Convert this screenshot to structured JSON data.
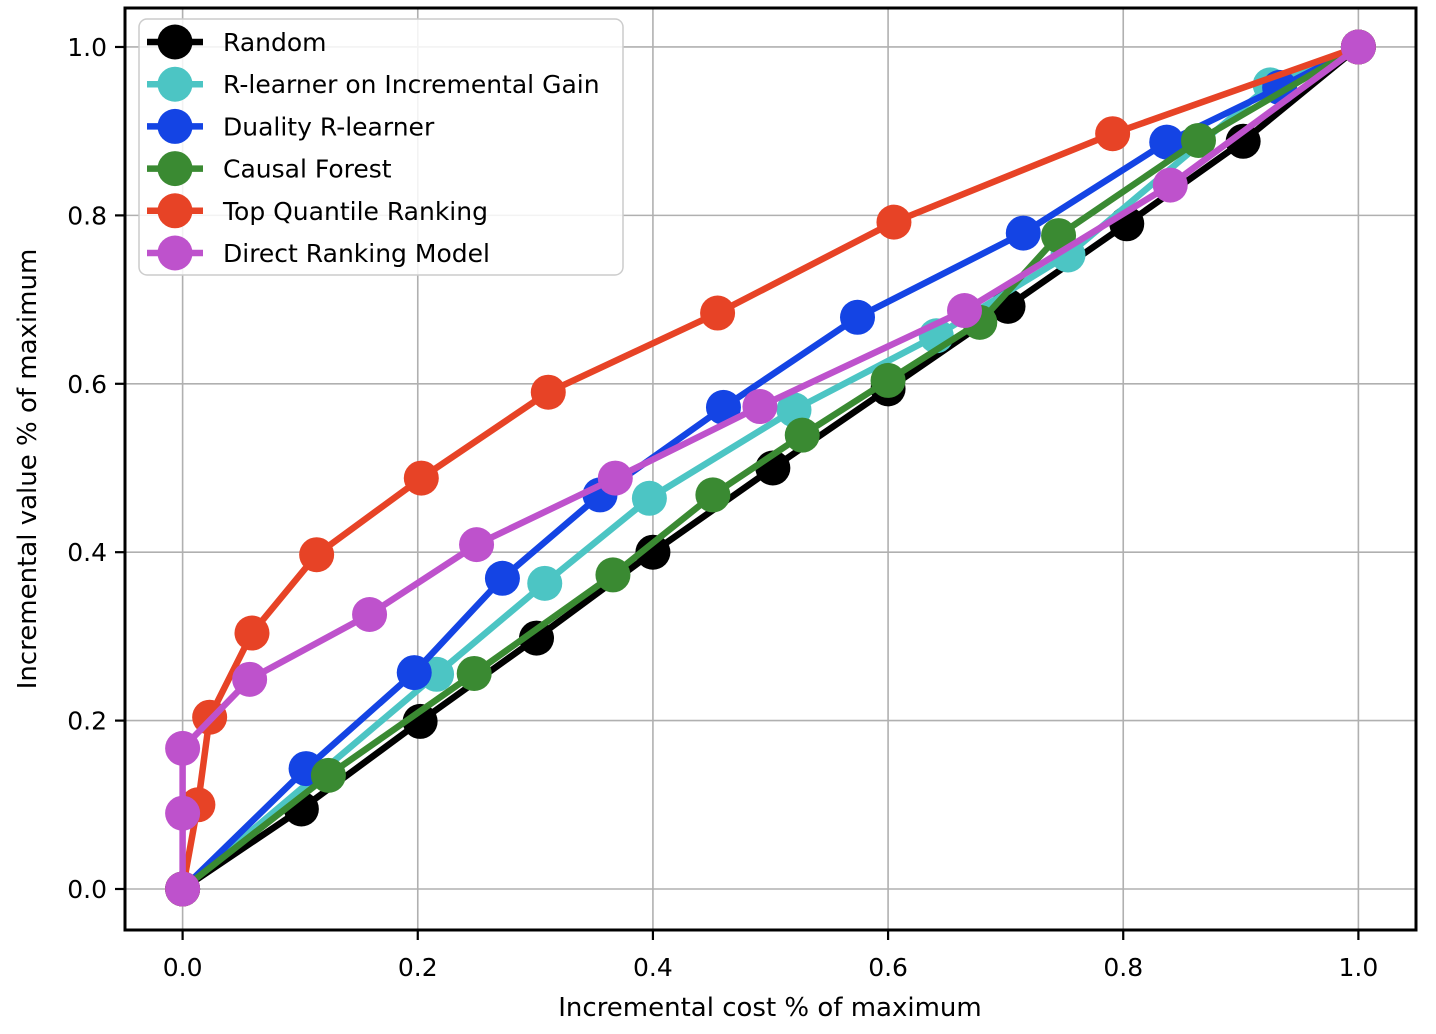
{
  "chart_data": {
    "type": "line",
    "title": "",
    "xlabel": "Incremental cost % of maximum",
    "ylabel": "Incremental value % of maximum",
    "xlim": [
      -0.049,
      1.049
    ],
    "ylim": [
      -0.0487,
      1.0463
    ],
    "grid": true,
    "legend_position": "upper left",
    "tick_values": [
      0.0,
      0.2,
      0.4,
      0.6,
      0.8,
      1.0
    ],
    "x_tick_labels": [
      "0.0",
      "0.2",
      "0.4",
      "0.6",
      "0.8",
      "1.0"
    ],
    "y_tick_labels": [
      "0.0",
      "0.2",
      "0.4",
      "0.6",
      "0.8",
      "1.0"
    ],
    "grid_color": "#b0b0b0",
    "spine_color": "#000000",
    "legend_border_color": "#cccccc",
    "series": [
      {
        "name": "Random",
        "color": "#000000",
        "x": [
          0.0,
          0.101,
          0.202,
          0.301,
          0.4,
          0.502,
          0.6,
          0.702,
          0.803,
          0.902,
          1.0
        ],
        "y": [
          0.0,
          0.095,
          0.199,
          0.298,
          0.4,
          0.5,
          0.594,
          0.692,
          0.79,
          0.888,
          1.0
        ]
      },
      {
        "name": "R-learner on Incremental Gain",
        "color": "#4cc5c4",
        "x": [
          0.0,
          0.216,
          0.308,
          0.397,
          0.52,
          0.641,
          0.753,
          0.925,
          1.0
        ],
        "y": [
          0.0,
          0.255,
          0.363,
          0.464,
          0.569,
          0.657,
          0.753,
          0.955,
          1.0
        ]
      },
      {
        "name": "Duality R-learner",
        "color": "#1444e4",
        "x": [
          0.0,
          0.105,
          0.197,
          0.272,
          0.355,
          0.46,
          0.574,
          0.715,
          0.837,
          0.933,
          1.0
        ],
        "y": [
          0.0,
          0.143,
          0.257,
          0.369,
          0.468,
          0.572,
          0.679,
          0.779,
          0.887,
          0.952,
          1.0
        ]
      },
      {
        "name": "Causal Forest",
        "color": "#3a8a32",
        "x": [
          0.0,
          0.124,
          0.248,
          0.366,
          0.451,
          0.527,
          0.6,
          0.678,
          0.745,
          0.864,
          1.0
        ],
        "y": [
          0.0,
          0.135,
          0.256,
          0.373,
          0.468,
          0.539,
          0.604,
          0.673,
          0.776,
          0.889,
          1.0
        ]
      },
      {
        "name": "Top Quantile Ranking",
        "color": "#e74326",
        "x": [
          0.0,
          0.013,
          0.023,
          0.059,
          0.114,
          0.203,
          0.311,
          0.455,
          0.605,
          0.791,
          1.0
        ],
        "y": [
          0.0,
          0.1,
          0.204,
          0.304,
          0.397,
          0.488,
          0.59,
          0.684,
          0.792,
          0.897,
          1.0
        ]
      },
      {
        "name": "Direct Ranking Model",
        "color": "#be52cc",
        "x": [
          0.0,
          0.0,
          0.0,
          0.057,
          0.159,
          0.25,
          0.368,
          0.491,
          0.665,
          0.84,
          1.0
        ],
        "y": [
          0.0,
          0.09,
          0.167,
          0.249,
          0.326,
          0.409,
          0.488,
          0.573,
          0.687,
          0.836,
          1.0
        ]
      }
    ]
  }
}
